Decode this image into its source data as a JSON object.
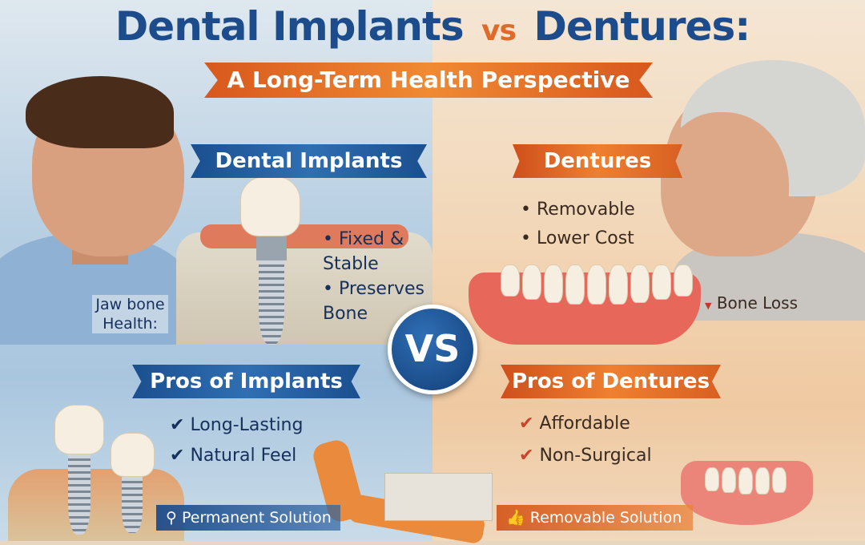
{
  "title": {
    "part1": "Dental Implants",
    "vs": "vs",
    "part2": "Dentures:"
  },
  "subtitle": "A Long-Term Health Perspective",
  "implants": {
    "heading": "Dental Implants",
    "bullets": [
      "Fixed & Stable",
      "Preserves Bone"
    ],
    "jaw_label": "Jaw bone Health:",
    "pros_heading": "Pros of Implants",
    "pros": [
      "Long-Lasting",
      "Natural Feel"
    ],
    "footer": "Permanent Solution",
    "footer_icon": "magnifier-icon"
  },
  "dentures": {
    "heading": "Dentures",
    "bullets": [
      "Removable",
      "Lower Cost"
    ],
    "bone_label": "Bone Loss",
    "pros_heading": "Pros of Dentures",
    "pros": [
      "Affordable",
      "Non-Surgical"
    ],
    "footer": "Removable Solution",
    "footer_icon": "thumbs-up-icon"
  },
  "vs_badge": "VS",
  "colors": {
    "blue": "#1d4c8c",
    "orange": "#e06a2a"
  }
}
